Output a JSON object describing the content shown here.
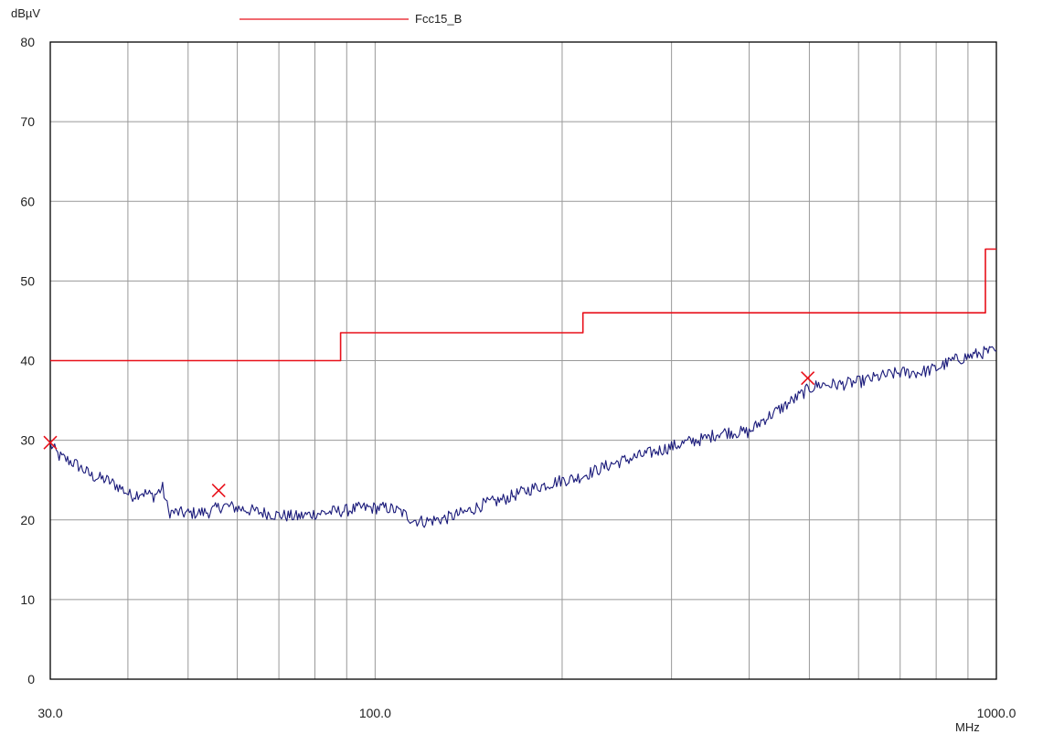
{
  "chart_data": {
    "type": "line",
    "ylabel": "dBµV",
    "xlabel": "MHz",
    "x_scale": "log",
    "xlim": [
      30,
      1000
    ],
    "ylim": [
      0,
      80
    ],
    "grid": true,
    "legend_placement": "top-center",
    "x_tick_labels": [
      {
        "value": 30,
        "label": "30.0"
      },
      {
        "value": 100,
        "label": "100.0"
      },
      {
        "value": 1000,
        "label": "1000.0"
      }
    ],
    "y_ticks": [
      0,
      10,
      20,
      30,
      40,
      50,
      60,
      70,
      80
    ],
    "series": [
      {
        "name": "Fcc15_B",
        "color": "#e8101a",
        "style": "step",
        "x": [
          30,
          88,
          88,
          216,
          216,
          960,
          960,
          1000
        ],
        "y": [
          40,
          40,
          43.5,
          43.5,
          46,
          46,
          54,
          54
        ]
      },
      {
        "color": "#1a1a7a",
        "style": "noisy-line",
        "x": [
          30,
          31,
          33,
          35,
          37,
          39,
          40.5,
          42,
          44,
          45.5,
          46.5,
          50,
          54,
          57,
          60,
          65,
          70,
          75,
          80,
          85,
          90,
          95,
          100,
          105,
          110,
          115,
          120,
          125,
          130,
          140,
          150,
          160,
          170,
          180,
          190,
          200,
          210,
          220,
          240,
          260,
          280,
          300,
          320,
          340,
          360,
          380,
          400,
          420,
          440,
          460,
          480,
          500,
          520,
          540,
          560,
          600,
          650,
          700,
          750,
          800,
          850,
          900,
          950,
          1000
        ],
        "y": [
          29.5,
          28,
          27,
          25.5,
          25,
          24,
          23,
          23.5,
          23,
          24,
          21,
          20.8,
          21,
          21.8,
          21.5,
          21,
          20.6,
          20.4,
          20.8,
          21,
          21.2,
          21.5,
          21.5,
          21.5,
          21,
          20,
          19.8,
          20,
          20.2,
          21,
          22,
          22.5,
          23.3,
          24,
          24.5,
          25,
          25.2,
          25.8,
          27,
          27.8,
          28.5,
          29.2,
          29.8,
          30.2,
          31,
          31,
          31,
          32.5,
          33.5,
          34.5,
          35.5,
          36.5,
          37,
          37,
          37,
          37.3,
          38,
          38.5,
          38.5,
          39,
          40,
          40.5,
          41,
          41.2
        ]
      }
    ],
    "markers": [
      {
        "x": 30,
        "y": 29.7
      },
      {
        "x": 56,
        "y": 23.7
      },
      {
        "x": 497,
        "y": 37.8
      }
    ],
    "colors": {
      "grid": "#999999",
      "axes": "#000000",
      "marker": "#e8101a"
    }
  }
}
